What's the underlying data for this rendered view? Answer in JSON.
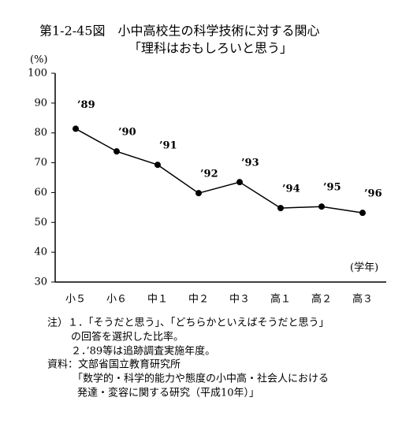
{
  "chart_data": {
    "type": "line",
    "title": "第1-2-45図　小中高校生の科学技術に対する関心",
    "subtitle": "「理科はおもしろいと思う」",
    "y_label": "(%)",
    "x_label": "(学年)",
    "categories": [
      "小５",
      "小６",
      "中１",
      "中２",
      "中３",
      "高１",
      "高２",
      "高３"
    ],
    "values": [
      81.4,
      73.8,
      69.3,
      59.8,
      63.5,
      54.8,
      55.3,
      53.2
    ],
    "point_labels": [
      "’89",
      "’90",
      "’91",
      "’92",
      "’93",
      "’94",
      "’95",
      "’96"
    ],
    "color": "#000000",
    "ylim": [
      30,
      100
    ],
    "yticks": [
      30,
      40,
      50,
      60,
      70,
      80,
      90,
      100
    ],
    "grid": false,
    "notes": [
      "注）１．「そうだと思う」、「どちらかといえばそうだと思う」",
      "の回答を選択した比率。",
      "２．’89等は追跡調査実施年度。",
      "資料：文部省国立教育研究所",
      "「数学的・科学的能力や態度の小中高・社会人における",
      "発達・変容に関する研究（平成10年）」"
    ]
  }
}
